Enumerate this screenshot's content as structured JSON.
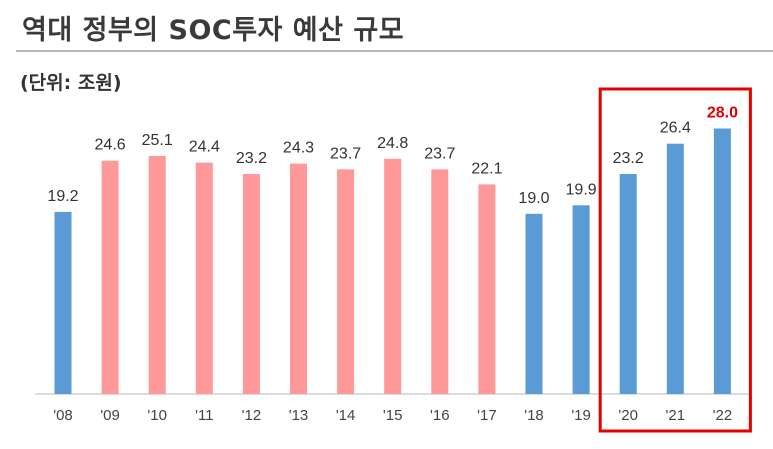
{
  "title": "역대 정부의 SOC투자 예산 규모",
  "unit_label": "(단위: 조원)",
  "colors": {
    "blue": "#5b9bd5",
    "pink": "#ff9999",
    "highlight_box": "#e60000",
    "highlight_text": "#e00000"
  },
  "chart_data": {
    "type": "bar",
    "categories": [
      "'08",
      "'09",
      "'10",
      "'11",
      "'12",
      "'13",
      "'14",
      "'15",
      "'16",
      "'17",
      "'18",
      "'19",
      "'20",
      "'21",
      "'22"
    ],
    "values": [
      19.2,
      24.6,
      25.1,
      24.4,
      23.2,
      24.3,
      23.7,
      24.8,
      23.7,
      22.1,
      19.0,
      19.9,
      23.2,
      26.4,
      28.0
    ],
    "value_labels": [
      "19.2",
      "24.6",
      "25.1",
      "24.4",
      "23.2",
      "24.3",
      "23.7",
      "24.8",
      "23.7",
      "22.1",
      "19.0",
      "19.9",
      "23.2",
      "26.4",
      "28.0"
    ],
    "bar_colors": [
      "blue",
      "pink",
      "pink",
      "pink",
      "pink",
      "pink",
      "pink",
      "pink",
      "pink",
      "pink",
      "blue",
      "blue",
      "blue",
      "blue",
      "blue"
    ],
    "highlighted_categories": [
      "'20",
      "'21",
      "'22"
    ],
    "highlighted_value_label": "28.0",
    "grid": false,
    "legend": "none"
  }
}
